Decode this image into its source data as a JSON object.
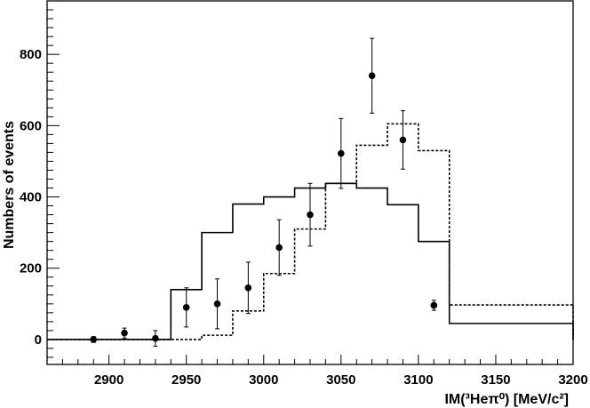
{
  "chart_data": {
    "type": "line",
    "xlabel": "IM(³Heπ⁰) [MeV/c²]",
    "ylabel": "Numbers of events",
    "xlim": [
      2860,
      3200
    ],
    "ylim": [
      -70,
      950
    ],
    "x_ticks": [
      2900,
      2950,
      3000,
      3050,
      3100,
      3150,
      3200
    ],
    "y_ticks": [
      0,
      200,
      400,
      600,
      800
    ],
    "grid": false,
    "series": [
      {
        "style": "data-points-with-error-bars",
        "color": "#000000",
        "x": [
          2890,
          2910,
          2930,
          2950,
          2970,
          2990,
          3010,
          3030,
          3050,
          3070,
          3090,
          3110
        ],
        "y": [
          0,
          18,
          3,
          90,
          100,
          145,
          258,
          350,
          522,
          740,
          560,
          96
        ],
        "yerr": [
          8,
          14,
          22,
          55,
          70,
          72,
          78,
          88,
          98,
          105,
          82,
          14
        ]
      },
      {
        "style": "solid-step-histogram",
        "color": "#000000",
        "bin_edges": [
          2860,
          2940,
          2960,
          2980,
          3000,
          3020,
          3040,
          3060,
          3080,
          3100,
          3120,
          3200
        ],
        "values": [
          0,
          140,
          300,
          380,
          400,
          425,
          438,
          425,
          378,
          275,
          45,
          0
        ]
      },
      {
        "style": "dashed-step-histogram",
        "color": "#000000",
        "bin_edges": [
          2860,
          2940,
          2960,
          2980,
          3000,
          3020,
          3040,
          3060,
          3080,
          3100,
          3120,
          3200
        ],
        "values": [
          0,
          0,
          12,
          80,
          185,
          310,
          438,
          545,
          605,
          530,
          97,
          0
        ]
      }
    ]
  }
}
